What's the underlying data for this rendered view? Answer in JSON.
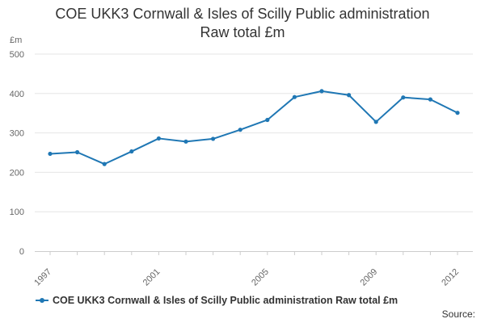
{
  "chart_data": {
    "type": "line",
    "title": "COE UKK3 Cornwall & Isles of Scilly Public administration\nRaw total £m",
    "ylabel": "£m",
    "xlabel": "",
    "x": [
      1997,
      1998,
      1999,
      2000,
      2001,
      2002,
      2003,
      2004,
      2005,
      2006,
      2007,
      2008,
      2009,
      2010,
      2011,
      2012
    ],
    "series": [
      {
        "name": "COE UKK3 Cornwall & Isles of Scilly Public administration Raw total £m",
        "values": [
          247,
          251,
          221,
          253,
          286,
          278,
          285,
          308,
          333,
          391,
          406,
          396,
          328,
          390,
          385,
          351
        ],
        "color": "#1f77b4"
      }
    ],
    "xlim": [
      1997,
      2012
    ],
    "ylim": [
      0,
      500
    ],
    "x_ticks": [
      "1997",
      "2001",
      "2005",
      "2009",
      "2012"
    ],
    "y_ticks": [
      "0",
      "100",
      "200",
      "300",
      "400",
      "500"
    ],
    "grid": true,
    "legend": "bottom"
  },
  "source_label": "Source:"
}
